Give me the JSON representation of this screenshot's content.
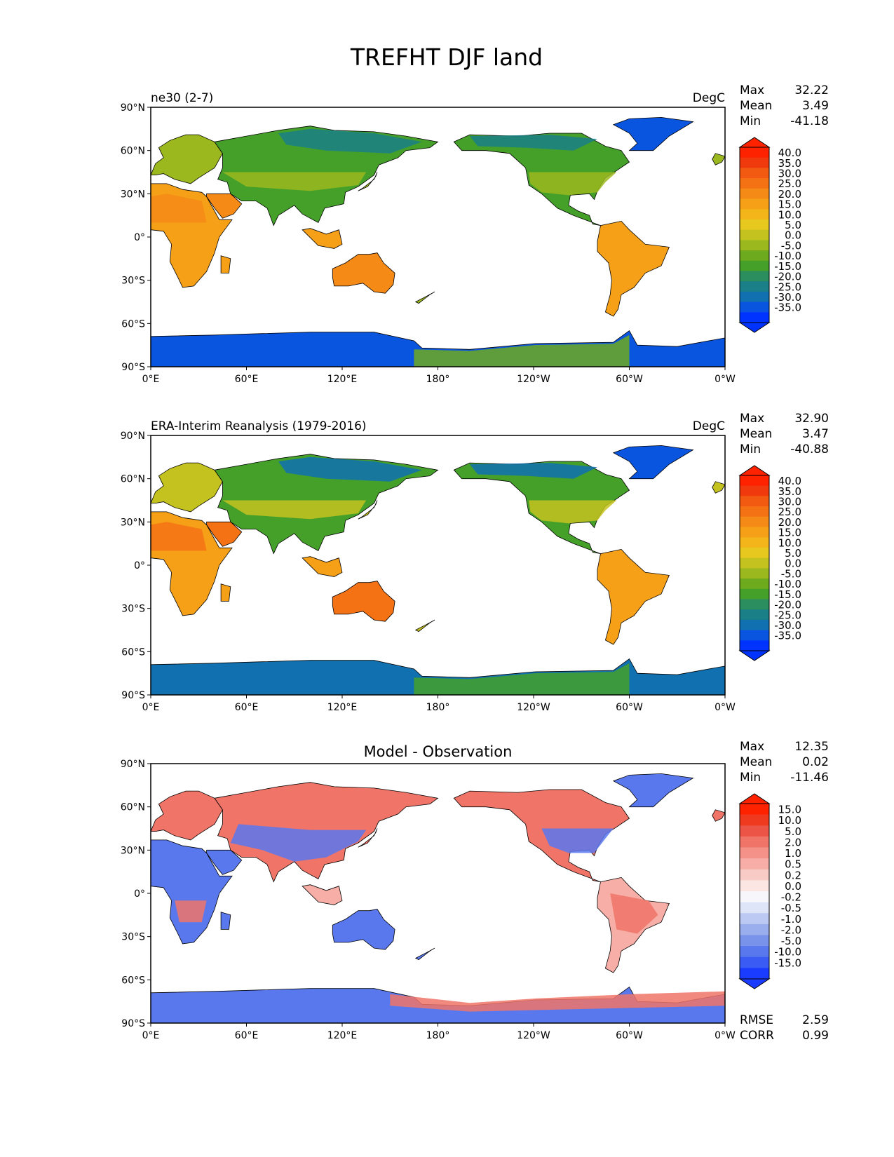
{
  "title": "TREFHT DJF land",
  "lat_ticks": [
    "90°N",
    "60°N",
    "30°N",
    "0°",
    "30°S",
    "60°S",
    "90°S"
  ],
  "lon_ticks": [
    "0°E",
    "60°E",
    "120°E",
    "180°",
    "120°W",
    "60°W",
    "0°W"
  ],
  "panels": [
    {
      "left_title": "ne30 (2-7)",
      "center_title": "",
      "units": "DegC",
      "stats": {
        "max_label": "Max",
        "max": "32.22",
        "mean_label": "Mean",
        "mean": "3.49",
        "min_label": "Min",
        "min": "-41.18"
      },
      "colorbar": {
        "labels": [
          "40.0",
          "35.0",
          "30.0",
          "25.0",
          "20.0",
          "15.0",
          "10.0",
          "5.0",
          "0.0",
          "-5.0",
          "-10.0",
          "-15.0",
          "-20.0",
          "-25.0",
          "-30.0",
          "-35.0"
        ],
        "colors": [
          "#0033ff",
          "#0a55e0",
          "#1070b0",
          "#1a7f86",
          "#2a8e5e",
          "#45a02a",
          "#6eaa1e",
          "#9bb81e",
          "#c4c21e",
          "#e6c81e",
          "#f4b51a",
          "#f6a018",
          "#f58a16",
          "#f47214",
          "#f25a12",
          "#f03a0e",
          "#ff2200"
        ],
        "min_color": "#0033ff",
        "max_color": "#ff2200"
      },
      "footer": null
    },
    {
      "left_title": "ERA-Interim Reanalysis (1979-2016)",
      "center_title": "",
      "units": "DegC",
      "stats": {
        "max_label": "Max",
        "max": "32.90",
        "mean_label": "Mean",
        "mean": "3.47",
        "min_label": "Min",
        "min": "-40.88"
      },
      "colorbar": {
        "labels": [
          "40.0",
          "35.0",
          "30.0",
          "25.0",
          "20.0",
          "15.0",
          "10.0",
          "5.0",
          "0.0",
          "-5.0",
          "-10.0",
          "-15.0",
          "-20.0",
          "-25.0",
          "-30.0",
          "-35.0"
        ],
        "colors": [
          "#0033ff",
          "#0a55e0",
          "#1070b0",
          "#1a7f86",
          "#2a8e5e",
          "#45a02a",
          "#6eaa1e",
          "#9bb81e",
          "#c4c21e",
          "#e6c81e",
          "#f4b51a",
          "#f6a018",
          "#f58a16",
          "#f47214",
          "#f25a12",
          "#f03a0e",
          "#ff2200"
        ],
        "min_color": "#0033ff",
        "max_color": "#ff2200"
      },
      "footer": null
    },
    {
      "left_title": "",
      "center_title": "Model - Observation",
      "units": "",
      "stats": {
        "max_label": "Max",
        "max": "12.35",
        "mean_label": "Mean",
        "mean": "0.02",
        "min_label": "Min",
        "min": "-11.46"
      },
      "colorbar": {
        "labels": [
          "15.0",
          "10.0",
          "5.0",
          "2.0",
          "1.0",
          "0.5",
          "0.2",
          "0.0",
          "-0.2",
          "-0.5",
          "-1.0",
          "-2.0",
          "-5.0",
          "-10.0",
          "-15.0"
        ],
        "colors": [
          "#1a3cff",
          "#3a5cf5",
          "#5a78ee",
          "#7a93ea",
          "#9aaeee",
          "#bccaf3",
          "#dfe5f9",
          "#f6f6fb",
          "#fbe6e4",
          "#f8cbc6",
          "#f6aea6",
          "#f4928a",
          "#f07468",
          "#ec5546",
          "#f03a20",
          "#ff2200"
        ],
        "min_color": "#1a3cff",
        "max_color": "#ff2200"
      },
      "footer": {
        "rmse_label": "RMSE",
        "rmse": "2.59",
        "corr_label": "CORR",
        "corr": "0.99"
      }
    }
  ],
  "map_colors": {
    "panel1": {
      "arctic": "#1a7f86",
      "boreal": "#45a02a",
      "midlat": "#9bb81e",
      "tropic": "#f6a018",
      "desert": "#f58a16",
      "ant_east": "#0a55e0",
      "ant_west": "#6eaa1e",
      "greenland": "#0a55e0"
    },
    "panel2": {
      "arctic": "#1070b0",
      "boreal": "#45a02a",
      "midlat": "#c4c21e",
      "tropic": "#f6a018",
      "desert": "#f47214",
      "ant_east": "#1070b0",
      "ant_west": "#45a02a",
      "greenland": "#0a55e0"
    },
    "panel3": {
      "warm": "#f07468",
      "cool": "#5a78ee",
      "neutral": "#f6aea6"
    }
  }
}
